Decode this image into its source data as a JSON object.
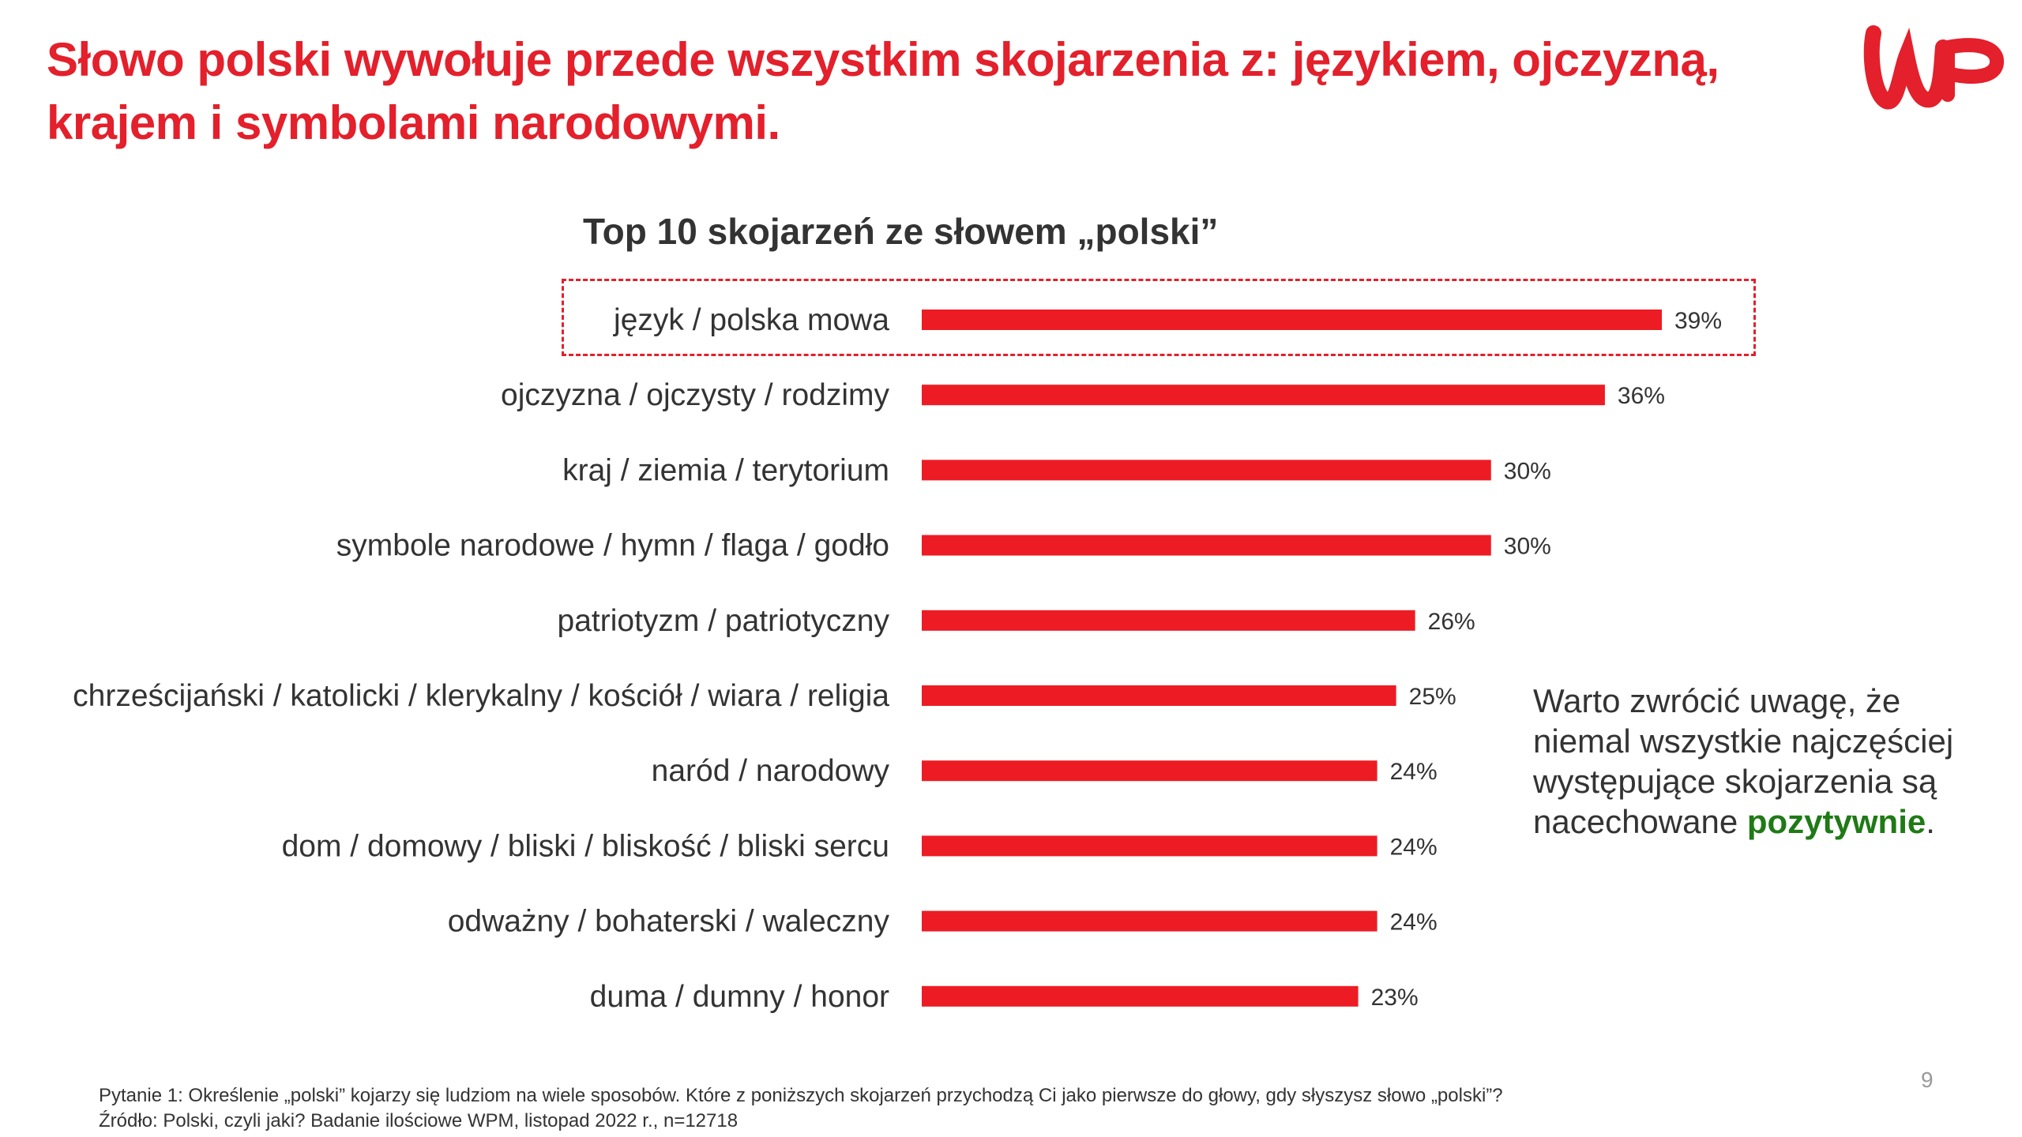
{
  "header": {
    "title": "Słowo polski wywołuje przede wszystkim skojarzenia z: językiem, ojczyzną, krajem i symbolami narodowymi.",
    "logo_text": "WP"
  },
  "colors": {
    "accent": "#e3202b",
    "bar": "#ed1c24",
    "positive": "#1f7a15",
    "text": "#333333"
  },
  "chart_data": {
    "type": "bar",
    "orientation": "horizontal",
    "title": "Top 10 skojarzeń ze słowem „polski”",
    "categories": [
      "język / polska mowa",
      "ojczyzna / ojczysty / rodzimy",
      "kraj / ziemia / terytorium",
      "symbole narodowe / hymn / flaga / godło",
      "patriotyzm / patriotyczny",
      "chrześcijański / katolicki / klerykalny / kościół / wiara / religia",
      "naród / narodowy",
      "dom / domowy / bliski / bliskość / bliski sercu",
      "odważny / bohaterski / waleczny",
      "duma / dumny / honor"
    ],
    "values": [
      39,
      36,
      30,
      30,
      26,
      25,
      24,
      24,
      24,
      23
    ],
    "value_suffix": "%",
    "highlighted_category": "język / polska mowa",
    "grid": false,
    "xlim": [
      0,
      39
    ]
  },
  "note": {
    "text_before": "Warto zwrócić uwagę, że niemal wszystkie najczęściej występujące skojarzenia są nacechowane ",
    "emphasis": "pozytywnie",
    "text_after": "."
  },
  "footer": {
    "question": "Pytanie 1: Określenie „polski” kojarzy się ludziom  na wiele sposobów. Które z poniższych skojarzeń przychodzą Ci jako pierwsze do głowy, gdy słyszysz słowo „polski”?",
    "source": "Źródło: Polski, czyli jaki? Badanie ilościowe WPM, listopad 2022 r., n=12718",
    "page_number": "9"
  }
}
